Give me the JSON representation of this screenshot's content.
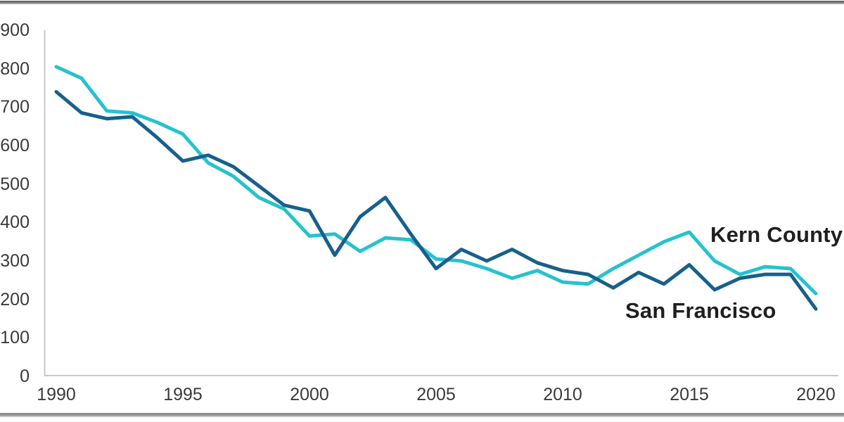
{
  "chart_data": {
    "type": "line",
    "title": "",
    "xlabel": "",
    "ylabel": "",
    "x": [
      1990,
      1991,
      1992,
      1993,
      1994,
      1995,
      1996,
      1997,
      1998,
      1999,
      2000,
      2001,
      2002,
      2003,
      2004,
      2005,
      2006,
      2007,
      2008,
      2009,
      2010,
      2011,
      2012,
      2013,
      2014,
      2015,
      2016,
      2017,
      2018,
      2019,
      2020
    ],
    "xticks": [
      1990,
      1995,
      2000,
      2005,
      2010,
      2015,
      2020
    ],
    "ylim": [
      0,
      900
    ],
    "ytick_step": 100,
    "grid": false,
    "legend_position": "inline-annotations",
    "series": [
      {
        "name": "Kern County",
        "color": "#26C2CE",
        "values": [
          805,
          775,
          690,
          685,
          660,
          630,
          555,
          520,
          465,
          435,
          365,
          370,
          325,
          360,
          355,
          305,
          300,
          280,
          255,
          275,
          245,
          240,
          280,
          315,
          350,
          375,
          300,
          265,
          285,
          280,
          215
        ]
      },
      {
        "name": "San Francisco",
        "color": "#17608C",
        "values": [
          740,
          685,
          670,
          675,
          620,
          560,
          575,
          545,
          495,
          445,
          430,
          315,
          415,
          465,
          370,
          280,
          330,
          300,
          330,
          295,
          275,
          265,
          230,
          270,
          240,
          290,
          225,
          255,
          265,
          265,
          175
        ]
      }
    ],
    "axis_color": "#c9c9c9",
    "tick_label_color": "#3a3a3a"
  }
}
